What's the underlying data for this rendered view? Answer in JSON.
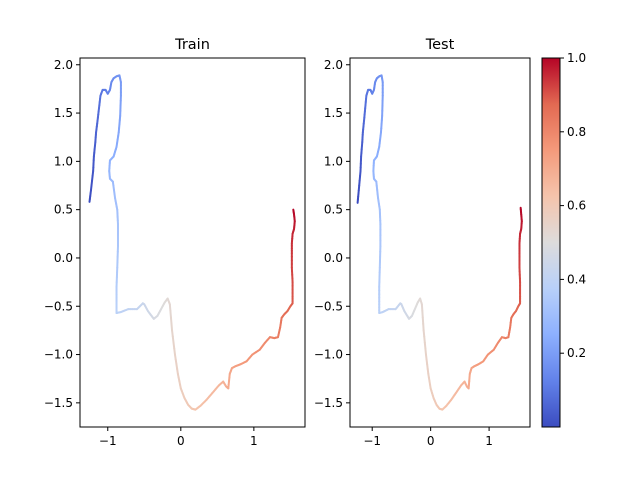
{
  "figure": {
    "background": "#ffffff"
  },
  "chart_data": [
    {
      "type": "line",
      "title": "Train",
      "xlabel": "",
      "ylabel": "",
      "xlim": [
        -1.38,
        1.7
      ],
      "ylim": [
        -1.75,
        2.07
      ],
      "xticks": [
        -1,
        0,
        1
      ],
      "yticks": [
        -1.5,
        -1.0,
        -0.5,
        0.0,
        0.5,
        1.0,
        1.5,
        2.0
      ],
      "xtick_labels": [
        "−1",
        "0",
        "1"
      ],
      "ytick_labels": [
        "−1.5",
        "−1.0",
        "−0.5",
        "0.0",
        "0.5",
        "1.0",
        "1.5",
        "2.0"
      ],
      "colormap": "coolwarm",
      "color_by": "progress along trajectory (0 to 1)",
      "points": [
        [
          -1.25,
          0.58
        ],
        [
          -1.23,
          0.7
        ],
        [
          -1.2,
          0.9
        ],
        [
          -1.19,
          1.05
        ],
        [
          -1.17,
          1.2
        ],
        [
          -1.16,
          1.3
        ],
        [
          -1.14,
          1.42
        ],
        [
          -1.12,
          1.55
        ],
        [
          -1.1,
          1.68
        ],
        [
          -1.07,
          1.74
        ],
        [
          -1.03,
          1.74
        ],
        [
          -1.0,
          1.7
        ],
        [
          -0.97,
          1.74
        ],
        [
          -0.95,
          1.82
        ],
        [
          -0.92,
          1.86
        ],
        [
          -0.88,
          1.88
        ],
        [
          -0.84,
          1.89
        ],
        [
          -0.82,
          1.82
        ],
        [
          -0.82,
          1.68
        ],
        [
          -0.83,
          1.47
        ],
        [
          -0.85,
          1.3
        ],
        [
          -0.88,
          1.15
        ],
        [
          -0.92,
          1.05
        ],
        [
          -0.97,
          1.01
        ],
        [
          -0.98,
          0.9
        ],
        [
          -0.97,
          0.82
        ],
        [
          -0.93,
          0.79
        ],
        [
          -0.9,
          0.62
        ],
        [
          -0.87,
          0.5
        ],
        [
          -0.86,
          0.35
        ],
        [
          -0.86,
          0.12
        ],
        [
          -0.87,
          -0.1
        ],
        [
          -0.88,
          -0.3
        ],
        [
          -0.88,
          -0.45
        ],
        [
          -0.88,
          -0.57
        ],
        [
          -0.82,
          -0.56
        ],
        [
          -0.72,
          -0.53
        ],
        [
          -0.6,
          -0.53
        ],
        [
          -0.52,
          -0.47
        ],
        [
          -0.5,
          -0.48
        ],
        [
          -0.45,
          -0.55
        ],
        [
          -0.4,
          -0.6
        ],
        [
          -0.37,
          -0.63
        ],
        [
          -0.32,
          -0.6
        ],
        [
          -0.27,
          -0.53
        ],
        [
          -0.22,
          -0.46
        ],
        [
          -0.18,
          -0.42
        ],
        [
          -0.15,
          -0.48
        ],
        [
          -0.12,
          -0.75
        ],
        [
          -0.08,
          -1.0
        ],
        [
          -0.04,
          -1.2
        ],
        [
          0.0,
          -1.35
        ],
        [
          0.05,
          -1.45
        ],
        [
          0.1,
          -1.52
        ],
        [
          0.15,
          -1.56
        ],
        [
          0.2,
          -1.57
        ],
        [
          0.27,
          -1.53
        ],
        [
          0.35,
          -1.47
        ],
        [
          0.43,
          -1.4
        ],
        [
          0.52,
          -1.32
        ],
        [
          0.58,
          -1.28
        ],
        [
          0.62,
          -1.33
        ],
        [
          0.65,
          -1.35
        ],
        [
          0.67,
          -1.2
        ],
        [
          0.7,
          -1.14
        ],
        [
          0.75,
          -1.12
        ],
        [
          0.82,
          -1.1
        ],
        [
          0.9,
          -1.07
        ],
        [
          0.98,
          -1.0
        ],
        [
          1.08,
          -0.95
        ],
        [
          1.15,
          -0.88
        ],
        [
          1.22,
          -0.82
        ],
        [
          1.28,
          -0.83
        ],
        [
          1.33,
          -0.82
        ],
        [
          1.36,
          -0.72
        ],
        [
          1.38,
          -0.62
        ],
        [
          1.42,
          -0.58
        ],
        [
          1.46,
          -0.55
        ],
        [
          1.5,
          -0.5
        ],
        [
          1.53,
          -0.47
        ],
        [
          1.53,
          -0.4
        ],
        [
          1.53,
          -0.25
        ],
        [
          1.52,
          -0.1
        ],
        [
          1.52,
          0.05
        ],
        [
          1.52,
          0.15
        ],
        [
          1.53,
          0.25
        ],
        [
          1.55,
          0.3
        ],
        [
          1.56,
          0.38
        ],
        [
          1.55,
          0.45
        ],
        [
          1.54,
          0.5
        ]
      ]
    },
    {
      "type": "line",
      "title": "Test",
      "xlabel": "",
      "ylabel": "",
      "xlim": [
        -1.38,
        1.7
      ],
      "ylim": [
        -1.75,
        2.07
      ],
      "xticks": [
        -1,
        0,
        1
      ],
      "yticks": [
        -1.5,
        -1.0,
        -0.5,
        0.0,
        0.5,
        1.0,
        1.5,
        2.0
      ],
      "xtick_labels": [
        "−1",
        "0",
        "1"
      ],
      "ytick_labels": [
        "−1.5",
        "−1.0",
        "−0.5",
        "0.0",
        "0.5",
        "1.0",
        "1.5",
        "2.0"
      ],
      "colormap": "coolwarm",
      "color_by": "progress along trajectory (0 to 1)",
      "points": [
        [
          -1.25,
          0.57
        ],
        [
          -1.23,
          0.7
        ],
        [
          -1.2,
          0.9
        ],
        [
          -1.19,
          1.05
        ],
        [
          -1.17,
          1.2
        ],
        [
          -1.16,
          1.3
        ],
        [
          -1.14,
          1.42
        ],
        [
          -1.12,
          1.55
        ],
        [
          -1.1,
          1.68
        ],
        [
          -1.07,
          1.74
        ],
        [
          -1.03,
          1.74
        ],
        [
          -1.0,
          1.7
        ],
        [
          -0.97,
          1.74
        ],
        [
          -0.95,
          1.82
        ],
        [
          -0.92,
          1.86
        ],
        [
          -0.88,
          1.88
        ],
        [
          -0.84,
          1.89
        ],
        [
          -0.82,
          1.82
        ],
        [
          -0.82,
          1.68
        ],
        [
          -0.83,
          1.47
        ],
        [
          -0.85,
          1.3
        ],
        [
          -0.88,
          1.15
        ],
        [
          -0.92,
          1.05
        ],
        [
          -0.97,
          1.01
        ],
        [
          -0.98,
          0.9
        ],
        [
          -0.97,
          0.82
        ],
        [
          -0.93,
          0.79
        ],
        [
          -0.9,
          0.62
        ],
        [
          -0.87,
          0.5
        ],
        [
          -0.86,
          0.35
        ],
        [
          -0.86,
          0.12
        ],
        [
          -0.87,
          -0.1
        ],
        [
          -0.88,
          -0.3
        ],
        [
          -0.88,
          -0.45
        ],
        [
          -0.88,
          -0.57
        ],
        [
          -0.82,
          -0.56
        ],
        [
          -0.72,
          -0.53
        ],
        [
          -0.6,
          -0.53
        ],
        [
          -0.52,
          -0.47
        ],
        [
          -0.5,
          -0.48
        ],
        [
          -0.45,
          -0.55
        ],
        [
          -0.4,
          -0.6
        ],
        [
          -0.37,
          -0.63
        ],
        [
          -0.32,
          -0.6
        ],
        [
          -0.27,
          -0.53
        ],
        [
          -0.22,
          -0.46
        ],
        [
          -0.18,
          -0.42
        ],
        [
          -0.15,
          -0.48
        ],
        [
          -0.12,
          -0.75
        ],
        [
          -0.08,
          -1.0
        ],
        [
          -0.04,
          -1.2
        ],
        [
          0.0,
          -1.35
        ],
        [
          0.05,
          -1.45
        ],
        [
          0.1,
          -1.52
        ],
        [
          0.15,
          -1.56
        ],
        [
          0.2,
          -1.57
        ],
        [
          0.27,
          -1.53
        ],
        [
          0.35,
          -1.47
        ],
        [
          0.43,
          -1.4
        ],
        [
          0.52,
          -1.32
        ],
        [
          0.58,
          -1.28
        ],
        [
          0.62,
          -1.33
        ],
        [
          0.65,
          -1.35
        ],
        [
          0.67,
          -1.2
        ],
        [
          0.7,
          -1.14
        ],
        [
          0.75,
          -1.12
        ],
        [
          0.82,
          -1.1
        ],
        [
          0.9,
          -1.07
        ],
        [
          0.98,
          -1.0
        ],
        [
          1.08,
          -0.95
        ],
        [
          1.15,
          -0.88
        ],
        [
          1.22,
          -0.82
        ],
        [
          1.28,
          -0.83
        ],
        [
          1.33,
          -0.82
        ],
        [
          1.36,
          -0.72
        ],
        [
          1.38,
          -0.62
        ],
        [
          1.42,
          -0.58
        ],
        [
          1.46,
          -0.55
        ],
        [
          1.5,
          -0.5
        ],
        [
          1.53,
          -0.47
        ],
        [
          1.53,
          -0.4
        ],
        [
          1.53,
          -0.25
        ],
        [
          1.52,
          -0.1
        ],
        [
          1.52,
          0.05
        ],
        [
          1.52,
          0.15
        ],
        [
          1.53,
          0.25
        ],
        [
          1.55,
          0.3
        ],
        [
          1.56,
          0.38
        ],
        [
          1.55,
          0.45
        ],
        [
          1.54,
          0.52
        ]
      ]
    }
  ],
  "colorbar": {
    "colormap": "coolwarm",
    "range": [
      0.0,
      1.0
    ],
    "ticks": [
      0.2,
      0.4,
      0.6,
      0.8,
      1.0
    ],
    "tick_labels": [
      "0.2",
      "0.4",
      "0.6",
      "0.8",
      "1.0"
    ],
    "stops": [
      "#3b4cc0",
      "#6282ea",
      "#8db0fe",
      "#b8d0f9",
      "#dddcdc",
      "#f5c4ac",
      "#f49a7b",
      "#e26952",
      "#b40426"
    ]
  }
}
